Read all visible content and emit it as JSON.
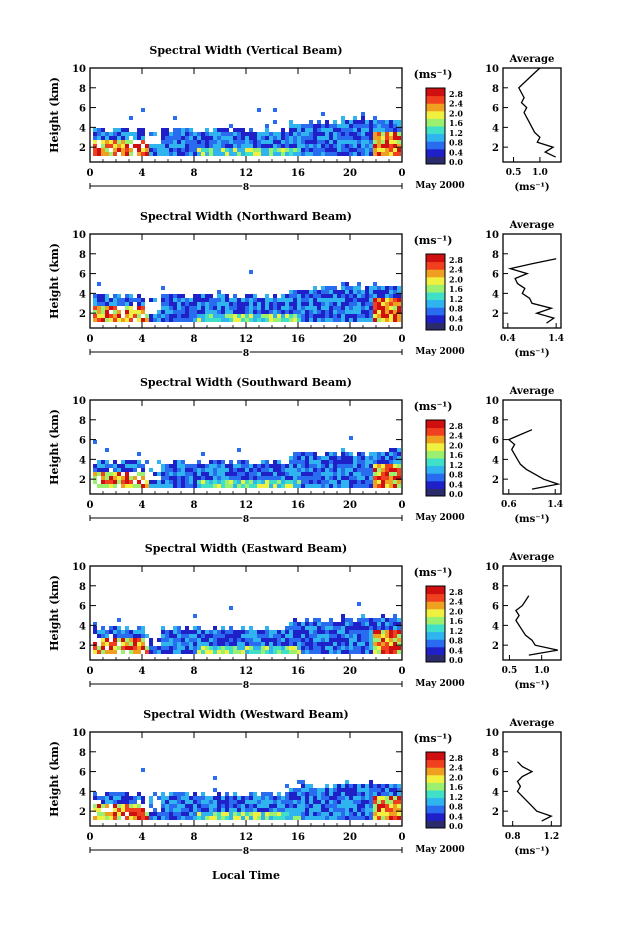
{
  "figure": {
    "date_label": "May 2000",
    "xlabel": "Local Time",
    "day_label": "8",
    "ylabel": "Height (km)",
    "units": "(ms⁻¹)",
    "avg_title": "Average",
    "avg_xlabel": "(ms⁻¹)",
    "colorbar_ticks": [
      "2.8",
      "2.4",
      "2.0",
      "1.6",
      "1.2",
      "0.8",
      "0.4",
      "0.0"
    ],
    "colors": [
      "#2b2b6b",
      "#2020c8",
      "#2a6cf0",
      "#2fb4f0",
      "#40e0c8",
      "#9cf070",
      "#f0f040",
      "#f0a020",
      "#f04020",
      "#d01010"
    ]
  },
  "chart_data": [
    {
      "type": "heatmap",
      "title": "Spectral Width (Vertical Beam)",
      "x_ticks": [
        "0",
        "4",
        "8",
        "12",
        "16",
        "20",
        "0"
      ],
      "y_ticks": [
        "2",
        "4",
        "6",
        "8",
        "10"
      ],
      "xlim": [
        0,
        24
      ],
      "ylim": [
        0.5,
        10
      ],
      "avg_profile": {
        "x_ticks": [
          "0.5",
          "1.0"
        ],
        "xlim": [
          0.3,
          1.4
        ],
        "height": [
          1.0,
          1.5,
          2.0,
          2.5,
          3.0,
          3.5,
          4.0,
          4.5,
          5.0,
          5.5,
          6.0,
          6.5,
          7.0,
          8.0,
          9.5,
          10.0
        ],
        "width": [
          1.3,
          1.1,
          1.25,
          0.95,
          1.0,
          0.9,
          0.85,
          0.8,
          0.75,
          0.7,
          0.75,
          0.65,
          0.7,
          0.6,
          0.9,
          1.0
        ]
      }
    },
    {
      "type": "heatmap",
      "title": "Spectral Width (Northward Beam)",
      "x_ticks": [
        "0",
        "4",
        "8",
        "12",
        "16",
        "20",
        "0"
      ],
      "y_ticks": [
        "2",
        "4",
        "6",
        "8",
        "10"
      ],
      "xlim": [
        0,
        24
      ],
      "ylim": [
        0.5,
        10
      ],
      "avg_profile": {
        "x_ticks": [
          "0.4",
          "1.4"
        ],
        "xlim": [
          0.3,
          1.5
        ],
        "height": [
          1.0,
          1.5,
          2.0,
          2.5,
          3.0,
          3.5,
          4.0,
          4.5,
          5.0,
          5.5,
          6.0,
          6.5,
          7.0,
          7.5
        ],
        "width": [
          1.2,
          1.35,
          1.0,
          1.3,
          0.9,
          0.85,
          0.7,
          0.75,
          0.6,
          0.55,
          0.8,
          0.45,
          0.9,
          1.4
        ]
      }
    },
    {
      "type": "heatmap",
      "title": "Spectral Width (Southward Beam)",
      "x_ticks": [
        "0",
        "4",
        "8",
        "12",
        "16",
        "20",
        "0"
      ],
      "y_ticks": [
        "2",
        "4",
        "6",
        "8",
        "10"
      ],
      "xlim": [
        0,
        24
      ],
      "ylim": [
        0.5,
        10
      ],
      "avg_profile": {
        "x_ticks": [
          "0.6",
          "1.4"
        ],
        "xlim": [
          0.5,
          1.5
        ],
        "height": [
          1.0,
          1.5,
          2.0,
          2.5,
          3.0,
          3.5,
          4.0,
          4.5,
          5.0,
          5.5,
          6.0,
          6.5,
          7.0
        ],
        "width": [
          1.0,
          1.45,
          1.2,
          1.05,
          0.9,
          0.8,
          0.75,
          0.7,
          0.65,
          0.7,
          0.6,
          0.8,
          1.0
        ]
      }
    },
    {
      "type": "heatmap",
      "title": "Spectral Width (Eastward Beam)",
      "x_ticks": [
        "0",
        "4",
        "8",
        "12",
        "16",
        "20",
        "0"
      ],
      "y_ticks": [
        "2",
        "4",
        "6",
        "8",
        "10"
      ],
      "xlim": [
        0,
        24
      ],
      "ylim": [
        0.5,
        10
      ],
      "avg_profile": {
        "x_ticks": [
          "0.5",
          "1.0"
        ],
        "xlim": [
          0.4,
          1.3
        ],
        "height": [
          1.0,
          1.5,
          2.0,
          2.5,
          3.0,
          3.5,
          4.0,
          4.5,
          5.0,
          5.5,
          6.0,
          6.5,
          7.0
        ],
        "width": [
          0.8,
          1.25,
          0.9,
          0.85,
          0.75,
          0.7,
          0.65,
          0.6,
          0.65,
          0.6,
          0.7,
          0.75,
          0.8
        ]
      }
    },
    {
      "type": "heatmap",
      "title": "Spectral Width (Westward Beam)",
      "x_ticks": [
        "0",
        "4",
        "8",
        "12",
        "16",
        "20",
        "0"
      ],
      "y_ticks": [
        "2",
        "4",
        "6",
        "8",
        "10"
      ],
      "xlim": [
        0,
        24
      ],
      "ylim": [
        0.5,
        10
      ],
      "avg_profile": {
        "x_ticks": [
          "0.8",
          "1.2"
        ],
        "xlim": [
          0.7,
          1.3
        ],
        "height": [
          1.0,
          1.5,
          2.0,
          2.5,
          3.0,
          3.5,
          4.0,
          4.5,
          5.0,
          5.5,
          6.0,
          6.5,
          7.0
        ],
        "width": [
          1.1,
          1.2,
          1.05,
          1.0,
          0.95,
          0.9,
          0.85,
          0.88,
          0.85,
          0.9,
          1.0,
          0.9,
          0.85
        ]
      }
    }
  ]
}
